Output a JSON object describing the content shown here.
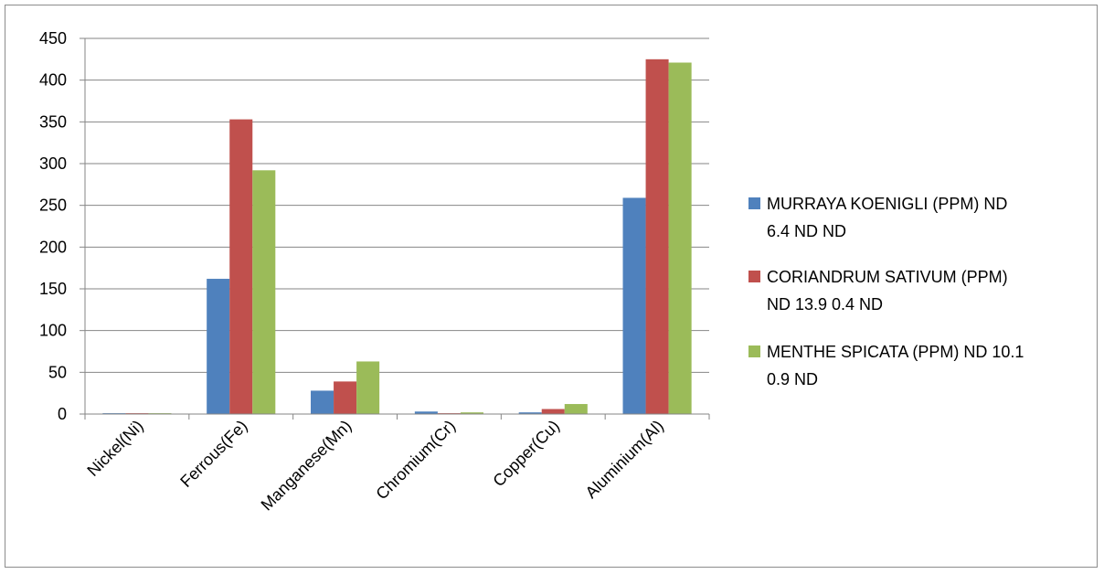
{
  "chart_data": {
    "type": "bar",
    "categories": [
      "Nickel(Ni)",
      "Ferrous(Fe)",
      "Manganese(Mn)",
      "Chromium(Cr)",
      "Copper(Cu)",
      "Aluminium(Al)"
    ],
    "series": [
      {
        "name": " MURRAYA KOENIGLI (PPM) ND 6.4 ND ND",
        "legend_lines": [
          " MURRAYA KOENIGLI (PPM) ND",
          "6.4 ND ND"
        ],
        "color": "#4f81bd",
        "values": [
          1,
          162,
          28,
          3,
          2,
          259
        ]
      },
      {
        "name": "CORIANDRUM SATIVUM (PPM) ND 13.9 0.4 ND",
        "legend_lines": [
          "CORIANDRUM SATIVUM (PPM)",
          "ND 13.9 0.4 ND"
        ],
        "color": "#c0504d",
        "values": [
          1,
          353,
          39,
          1,
          6,
          425
        ]
      },
      {
        "name": "MENTHE SPICATA (PPM) ND 10.1 0.9 ND",
        "legend_lines": [
          "MENTHE SPICATA (PPM) ND 10.1",
          "0.9 ND"
        ],
        "color": "#9bbb59",
        "values": [
          1,
          292,
          63,
          2,
          12,
          421
        ]
      }
    ],
    "ylim": [
      0,
      450
    ],
    "yticks": [
      0,
      50,
      100,
      150,
      200,
      250,
      300,
      350,
      400,
      450
    ],
    "grid": true,
    "legend_position": "right",
    "xlabel": "",
    "ylabel": "",
    "title": ""
  }
}
